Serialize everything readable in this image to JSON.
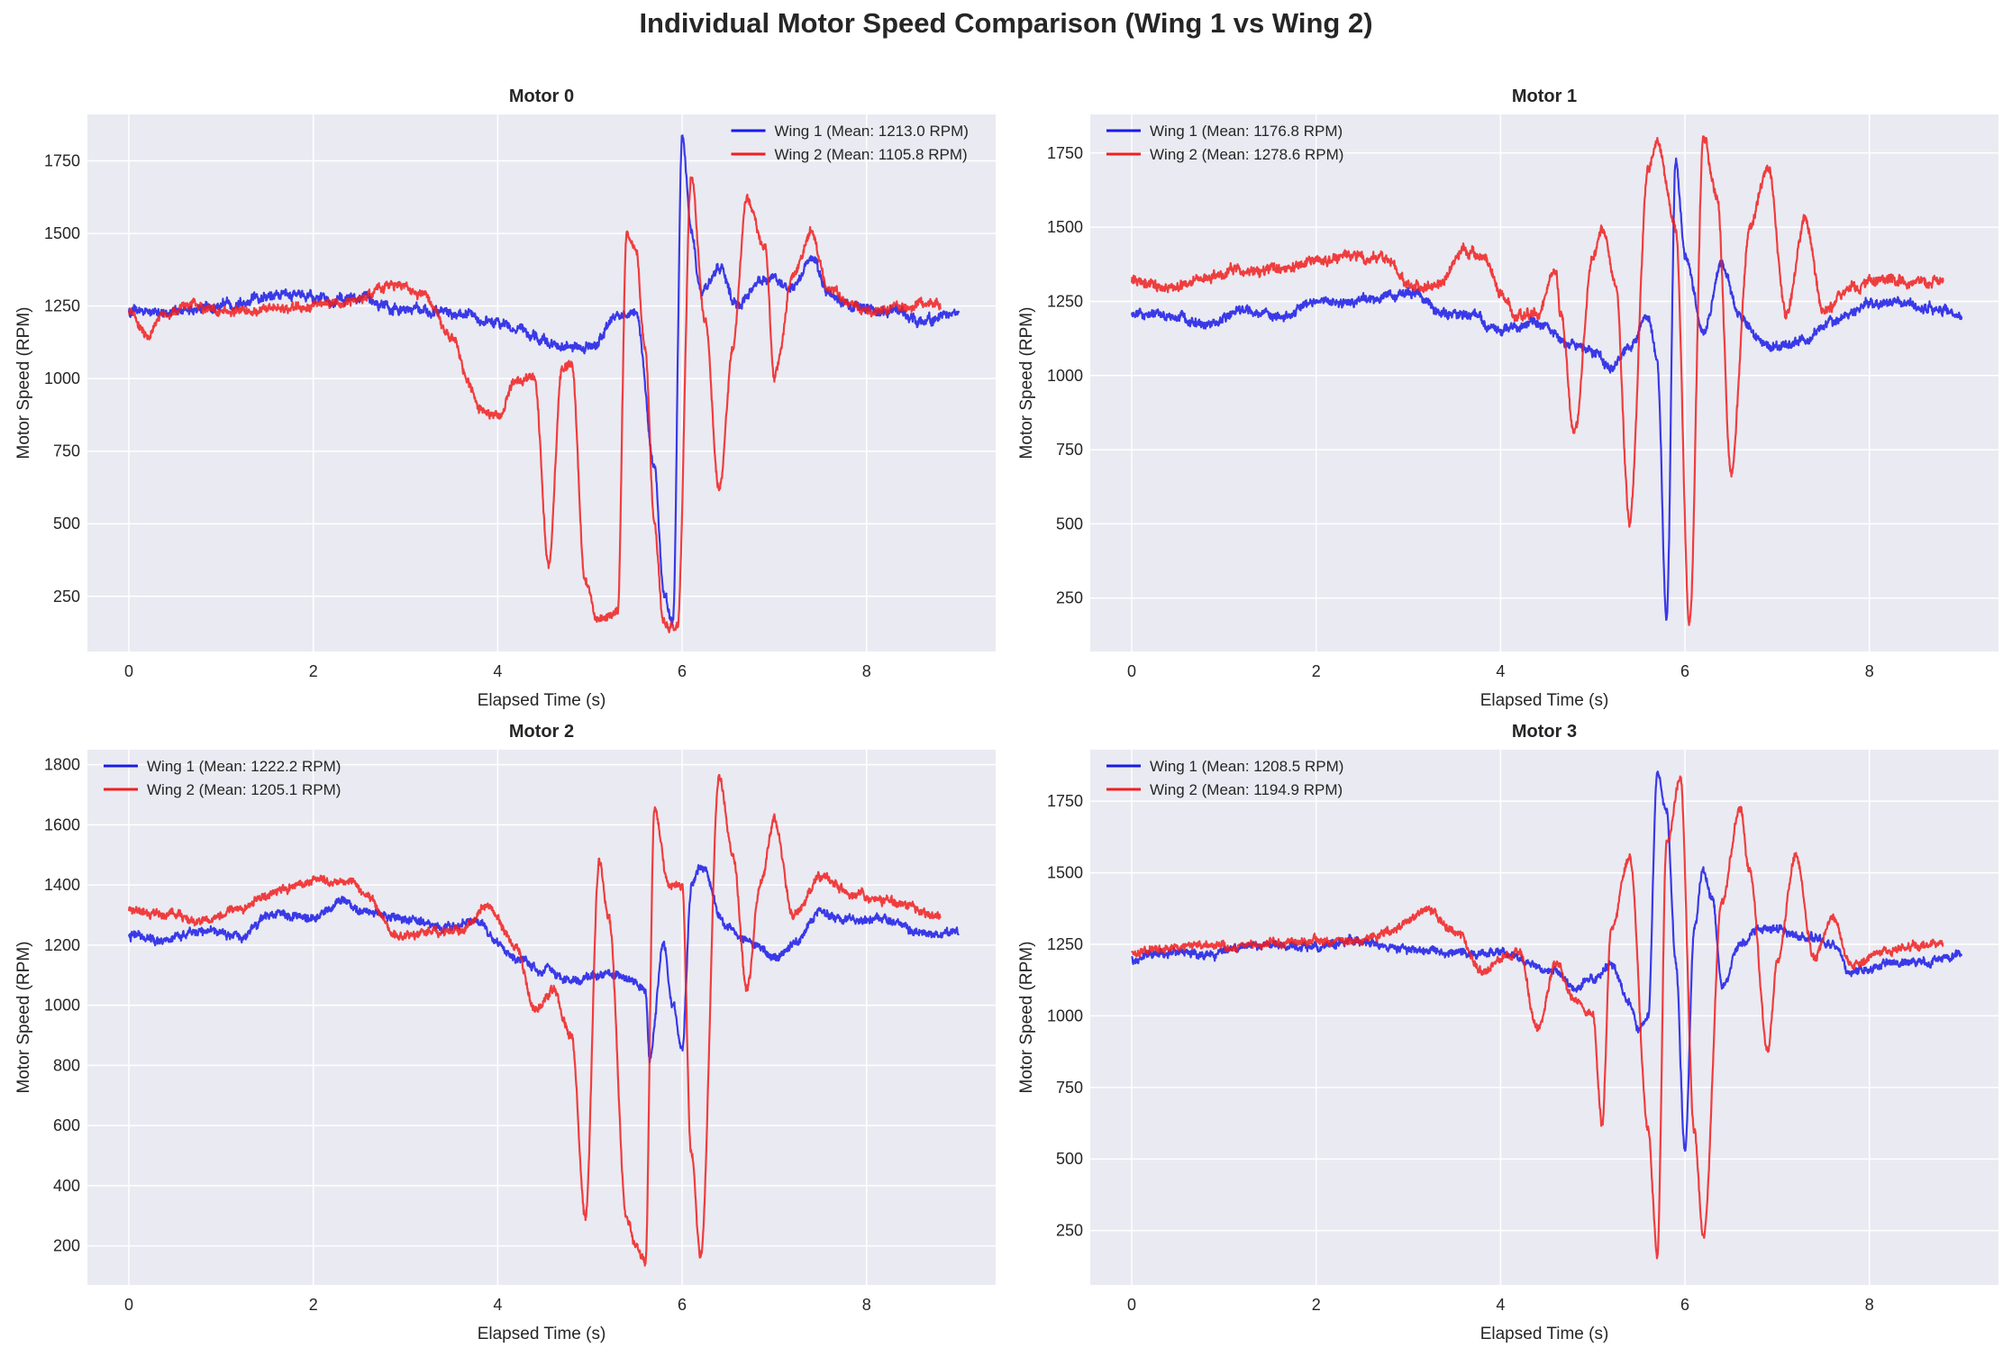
{
  "figure": {
    "title": "Individual Motor Speed Comparison (Wing 1 vs Wing 2)"
  },
  "colors": {
    "plot_bg": "#eaeaf2",
    "grid": "#ffffff",
    "wing1": "#1a1ae6",
    "wing2": "#f01f1f",
    "text": "#262626"
  },
  "chart_data": [
    {
      "type": "line",
      "title": "Motor 0",
      "xlabel": "Elapsed Time (s)",
      "ylabel": "Motor Speed (RPM)",
      "xlim": [
        -0.45,
        9.4
      ],
      "ylim": [
        60,
        1910
      ],
      "xticks": [
        0,
        2,
        4,
        6,
        8
      ],
      "yticks": [
        250,
        500,
        750,
        1000,
        1250,
        1500,
        1750
      ],
      "grid": true,
      "legend_position": "top-right",
      "series": [
        {
          "name": "Wing 1 (Mean: 1213.0 RPM)",
          "color": "#1a1ae6",
          "x": [
            0,
            0.5,
            1,
            1.5,
            2,
            2.5,
            3,
            3.3,
            3.6,
            3.9,
            4.2,
            4.5,
            4.7,
            5.0,
            5.3,
            5.5,
            5.7,
            5.8,
            5.9,
            6.0,
            6.1,
            6.2,
            6.4,
            6.6,
            6.8,
            7.0,
            7.2,
            7.4,
            7.6,
            7.8,
            8.0,
            8.3,
            8.6,
            9.0
          ],
          "y": [
            1230,
            1230,
            1250,
            1290,
            1280,
            1270,
            1240,
            1230,
            1220,
            1200,
            1170,
            1130,
            1110,
            1100,
            1220,
            1230,
            700,
            250,
            160,
            1840,
            1500,
            1300,
            1380,
            1250,
            1330,
            1350,
            1310,
            1410,
            1300,
            1250,
            1240,
            1230,
            1200,
            1220
          ],
          "noise": 24
        },
        {
          "name": "Wing 2 (Mean: 1105.8 RPM)",
          "color": "#f01f1f",
          "x": [
            0,
            0.2,
            0.4,
            0.7,
            1,
            1.5,
            2,
            2.5,
            2.8,
            3.2,
            3.5,
            3.7,
            3.8,
            4.0,
            4.2,
            4.4,
            4.55,
            4.7,
            4.8,
            4.95,
            5.1,
            5.3,
            5.4,
            5.5,
            5.6,
            5.7,
            5.8,
            5.95,
            6.1,
            6.25,
            6.4,
            6.55,
            6.7,
            6.9,
            7.0,
            7.2,
            7.4,
            7.6,
            7.8,
            8.1,
            8.4,
            8.8
          ],
          "y": [
            1230,
            1150,
            1220,
            1250,
            1230,
            1240,
            1250,
            1270,
            1320,
            1290,
            1150,
            980,
            900,
            870,
            1000,
            1000,
            350,
            1040,
            1050,
            300,
            160,
            200,
            1500,
            1450,
            1100,
            500,
            160,
            150,
            1700,
            1200,
            610,
            1100,
            1620,
            1450,
            1010,
            1350,
            1500,
            1300,
            1260,
            1230,
            1250,
            1260
          ],
          "noise": 22
        }
      ]
    },
    {
      "type": "line",
      "title": "Motor 1",
      "xlabel": "Elapsed Time (s)",
      "ylabel": "Motor Speed (RPM)",
      "xlim": [
        -0.45,
        9.4
      ],
      "ylim": [
        70,
        1880
      ],
      "xticks": [
        0,
        2,
        4,
        6,
        8
      ],
      "yticks": [
        250,
        500,
        750,
        1000,
        1250,
        1500,
        1750
      ],
      "grid": true,
      "legend_position": "top-left",
      "series": [
        {
          "name": "Wing 1 (Mean: 1176.8 RPM)",
          "color": "#1a1ae6",
          "x": [
            0,
            0.4,
            0.8,
            1.2,
            1.6,
            2.0,
            2.4,
            2.8,
            3.1,
            3.4,
            3.7,
            4.0,
            4.4,
            4.8,
            5.0,
            5.2,
            5.4,
            5.6,
            5.7,
            5.8,
            5.9,
            6.0,
            6.2,
            6.4,
            6.6,
            6.8,
            7.0,
            7.3,
            7.6,
            8.0,
            8.4,
            8.8,
            9.0
          ],
          "y": [
            1200,
            1200,
            1170,
            1220,
            1200,
            1250,
            1250,
            1270,
            1280,
            1200,
            1200,
            1150,
            1180,
            1110,
            1080,
            1030,
            1100,
            1200,
            1050,
            180,
            1730,
            1400,
            1150,
            1370,
            1200,
            1120,
            1100,
            1120,
            1180,
            1240,
            1240,
            1220,
            1200
          ],
          "noise": 22
        },
        {
          "name": "Wing 2 (Mean: 1278.6 RPM)",
          "color": "#f01f1f",
          "x": [
            0,
            0.4,
            0.8,
            1.2,
            1.6,
            2.0,
            2.4,
            2.8,
            3.0,
            3.3,
            3.6,
            3.8,
            4.0,
            4.2,
            4.4,
            4.6,
            4.65,
            4.8,
            5.0,
            5.1,
            5.25,
            5.4,
            5.6,
            5.7,
            5.9,
            6.05,
            6.2,
            6.35,
            6.5,
            6.7,
            6.9,
            7.1,
            7.3,
            7.5,
            7.8,
            8.2,
            8.6,
            8.8
          ],
          "y": [
            1320,
            1290,
            1330,
            1350,
            1360,
            1380,
            1400,
            1390,
            1300,
            1300,
            1420,
            1400,
            1280,
            1200,
            1200,
            1360,
            1200,
            810,
            1400,
            1500,
            1300,
            500,
            1700,
            1780,
            1500,
            160,
            1800,
            1600,
            670,
            1500,
            1700,
            1200,
            1520,
            1220,
            1300,
            1320,
            1310,
            1320
          ],
          "noise": 24
        }
      ]
    },
    {
      "type": "line",
      "title": "Motor 2",
      "xlabel": "Elapsed Time (s)",
      "ylabel": "Motor Speed (RPM)",
      "xlim": [
        -0.45,
        9.4
      ],
      "ylim": [
        70,
        1850
      ],
      "xticks": [
        0,
        2,
        4,
        6,
        8
      ],
      "yticks": [
        200,
        400,
        600,
        800,
        1000,
        1200,
        1400,
        1600,
        1800
      ],
      "grid": true,
      "legend_position": "top-left",
      "series": [
        {
          "name": "Wing 1 (Mean: 1222.2 RPM)",
          "color": "#1a1ae6",
          "x": [
            0,
            0.4,
            0.8,
            1.2,
            1.6,
            2.0,
            2.3,
            2.6,
            3.0,
            3.5,
            3.8,
            4.0,
            4.2,
            4.5,
            4.8,
            5.0,
            5.3,
            5.6,
            5.65,
            5.8,
            5.9,
            6.0,
            6.1,
            6.2,
            6.5,
            6.8,
            7.0,
            7.2,
            7.5,
            7.8,
            8.2,
            8.6,
            9.0
          ],
          "y": [
            1230,
            1220,
            1250,
            1230,
            1300,
            1290,
            1340,
            1310,
            1280,
            1260,
            1280,
            1200,
            1150,
            1120,
            1080,
            1100,
            1100,
            1050,
            820,
            1200,
            1000,
            850,
            1400,
            1470,
            1250,
            1200,
            1160,
            1200,
            1310,
            1280,
            1290,
            1240,
            1240
          ],
          "noise": 20
        },
        {
          "name": "Wing 2 (Mean: 1205.1 RPM)",
          "color": "#f01f1f",
          "x": [
            0,
            0.4,
            0.8,
            1.2,
            1.6,
            2.0,
            2.4,
            2.6,
            2.9,
            3.2,
            3.6,
            3.9,
            4.2,
            4.4,
            4.6,
            4.8,
            4.95,
            5.1,
            5.2,
            5.4,
            5.5,
            5.6,
            5.7,
            5.85,
            6.0,
            6.1,
            6.2,
            6.4,
            6.55,
            6.7,
            6.85,
            7.0,
            7.2,
            7.5,
            7.8,
            8.1,
            8.4,
            8.8
          ],
          "y": [
            1310,
            1300,
            1280,
            1320,
            1380,
            1410,
            1410,
            1360,
            1230,
            1240,
            1250,
            1330,
            1200,
            980,
            1050,
            900,
            300,
            1480,
            1300,
            300,
            200,
            150,
            1650,
            1400,
            1400,
            500,
            160,
            1760,
            1500,
            1050,
            1400,
            1620,
            1300,
            1430,
            1380,
            1350,
            1330,
            1300
          ],
          "noise": 20
        }
      ]
    },
    {
      "type": "line",
      "title": "Motor 3",
      "xlabel": "Elapsed Time (s)",
      "ylabel": "Motor Speed (RPM)",
      "xlim": [
        -0.45,
        9.4
      ],
      "ylim": [
        60,
        1930
      ],
      "xticks": [
        0,
        2,
        4,
        6,
        8
      ],
      "yticks": [
        250,
        500,
        750,
        1000,
        1250,
        1500,
        1750
      ],
      "grid": true,
      "legend_position": "top-left",
      "series": [
        {
          "name": "Wing 1 (Mean: 1208.5 RPM)",
          "color": "#1a1ae6",
          "x": [
            0,
            0.4,
            0.8,
            1.2,
            1.6,
            2.0,
            2.4,
            2.8,
            3.2,
            3.6,
            4.0,
            4.3,
            4.6,
            4.8,
            5.0,
            5.2,
            5.4,
            5.5,
            5.6,
            5.7,
            5.8,
            5.9,
            6.0,
            6.1,
            6.2,
            6.3,
            6.4,
            6.6,
            6.8,
            7.0,
            7.3,
            7.6,
            7.8,
            8.2,
            8.6,
            9.0
          ],
          "y": [
            1200,
            1220,
            1210,
            1240,
            1250,
            1240,
            1260,
            1240,
            1230,
            1220,
            1220,
            1180,
            1150,
            1100,
            1130,
            1180,
            1050,
            950,
            1000,
            1850,
            1720,
            1200,
            520,
            1300,
            1520,
            1400,
            1100,
            1250,
            1300,
            1300,
            1280,
            1250,
            1150,
            1180,
            1190,
            1220
          ],
          "noise": 20
        },
        {
          "name": "Wing 2 (Mean: 1194.9 RPM)",
          "color": "#f01f1f",
          "x": [
            0,
            0.4,
            0.8,
            1.2,
            1.6,
            2.0,
            2.4,
            2.8,
            3.2,
            3.5,
            3.8,
            4.0,
            4.2,
            4.4,
            4.6,
            4.8,
            5.0,
            5.1,
            5.2,
            5.4,
            5.6,
            5.7,
            5.8,
            5.95,
            6.1,
            6.2,
            6.4,
            6.6,
            6.7,
            6.9,
            7.0,
            7.2,
            7.4,
            7.6,
            7.8,
            8.2,
            8.6,
            8.8
          ],
          "y": [
            1220,
            1240,
            1250,
            1240,
            1260,
            1260,
            1260,
            1290,
            1370,
            1300,
            1150,
            1200,
            1230,
            950,
            1180,
            1060,
            1000,
            620,
            1300,
            1560,
            600,
            160,
            1600,
            1820,
            600,
            220,
            1400,
            1730,
            1500,
            880,
            1200,
            1560,
            1200,
            1350,
            1180,
            1220,
            1250,
            1250
          ],
          "noise": 20
        }
      ]
    }
  ]
}
